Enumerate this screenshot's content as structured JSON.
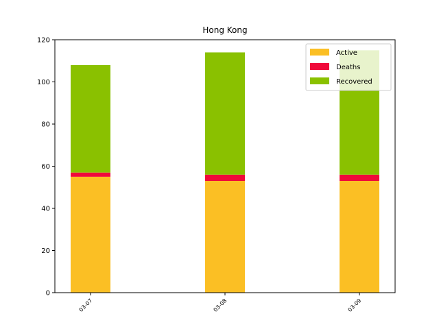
{
  "chart_data": {
    "type": "bar",
    "stacked": true,
    "title": "Hong Kong",
    "xlabel": "",
    "ylabel": "",
    "categories": [
      "03-07",
      "03-08",
      "03-09"
    ],
    "series": [
      {
        "name": "Active",
        "values": [
          55,
          53,
          53
        ],
        "color": "#fbbf24"
      },
      {
        "name": "Deaths",
        "values": [
          2,
          3,
          3
        ],
        "color": "#f00a3a"
      },
      {
        "name": "Recovered",
        "values": [
          51,
          58,
          59
        ],
        "color": "#8ac100"
      }
    ],
    "ylim": [
      0,
      120
    ],
    "yticks": [
      0,
      20,
      40,
      60,
      80,
      100,
      120
    ],
    "grid": false,
    "legend_position": "top-right"
  }
}
